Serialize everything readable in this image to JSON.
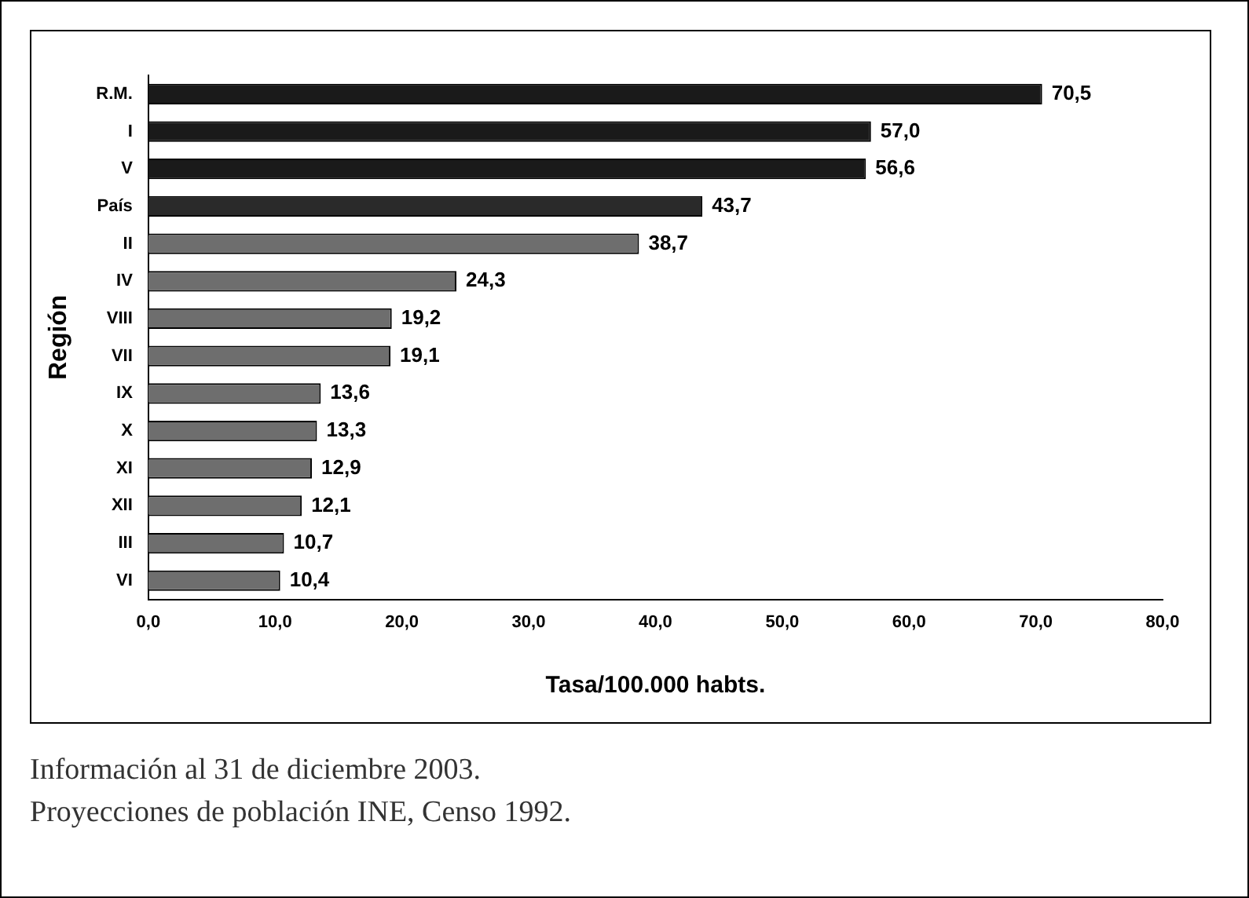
{
  "chart_data": {
    "type": "bar",
    "orientation": "horizontal",
    "categories": [
      "R.M.",
      "I",
      "V",
      "País",
      "II",
      "IV",
      "VIII",
      "VII",
      "IX",
      "X",
      "XI",
      "XII",
      "III",
      "VI"
    ],
    "values": [
      70.5,
      57.0,
      56.6,
      43.7,
      38.7,
      24.3,
      19.2,
      19.1,
      13.6,
      13.3,
      12.9,
      12.1,
      10.7,
      10.4
    ],
    "value_labels": [
      "70,5",
      "57,0",
      "56,6",
      "43,7",
      "38,7",
      "24,3",
      "19,2",
      "19,1",
      "13,6",
      "13,3",
      "12,9",
      "12,1",
      "10,7",
      "10,4"
    ],
    "colors": [
      "#1a1a1a",
      "#1a1a1a",
      "#1a1a1a",
      "#2a2a2a",
      "#6e6e6e",
      "#6e6e6e",
      "#6e6e6e",
      "#6e6e6e",
      "#6e6e6e",
      "#6e6e6e",
      "#6e6e6e",
      "#6e6e6e",
      "#6e6e6e",
      "#6e6e6e"
    ],
    "xlim": [
      0,
      80
    ],
    "xticks": [
      {
        "value": 0,
        "label": "0,0"
      },
      {
        "value": 10,
        "label": "10,0"
      },
      {
        "value": 20,
        "label": "20,0"
      },
      {
        "value": 30,
        "label": "30,0"
      },
      {
        "value": 40,
        "label": "40,0"
      },
      {
        "value": 50,
        "label": "50,0"
      },
      {
        "value": 60,
        "label": "60,0"
      },
      {
        "value": 70,
        "label": "70,0"
      },
      {
        "value": 80,
        "label": "80,0"
      }
    ],
    "xlabel": "Tasa/100.000 habts.",
    "ylabel": "Región",
    "grid": false,
    "legend": false,
    "annotations": [
      "Información al 31 de diciembre 2003.",
      "Proyecciones de población INE, Censo 1992."
    ]
  }
}
